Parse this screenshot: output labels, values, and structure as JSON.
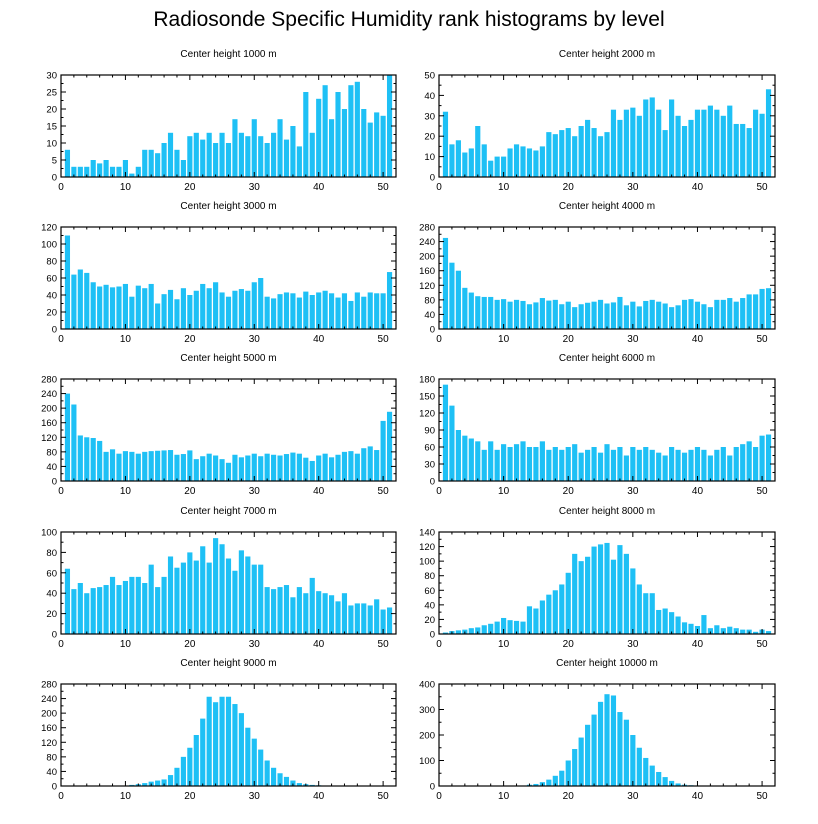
{
  "title": "Radiosonde Specific Humidity rank histograms by level",
  "bar_color": "#1ec0f5",
  "chart_data": [
    {
      "type": "bar",
      "title": "Center height 1000 m",
      "xlabel": "",
      "ylabel": "",
      "xlim": [
        0,
        52
      ],
      "ylim": [
        0,
        30
      ],
      "xticks": [
        0,
        10,
        20,
        30,
        40,
        50
      ],
      "yticks": [
        0,
        5,
        10,
        15,
        20,
        25,
        30
      ],
      "x": [
        1,
        2,
        3,
        4,
        5,
        6,
        7,
        8,
        9,
        10,
        11,
        12,
        13,
        14,
        15,
        16,
        17,
        18,
        19,
        20,
        21,
        22,
        23,
        24,
        25,
        26,
        27,
        28,
        29,
        30,
        31,
        32,
        33,
        34,
        35,
        36,
        37,
        38,
        39,
        40,
        41,
        42,
        43,
        44,
        45,
        46,
        47,
        48,
        49,
        50,
        51
      ],
      "values": [
        8,
        3,
        3,
        3,
        5,
        4,
        5,
        3,
        3,
        5,
        1,
        3,
        8,
        8,
        7,
        10,
        13,
        8,
        5,
        12,
        13,
        11,
        13,
        10,
        13,
        10,
        17,
        13,
        12,
        17,
        12,
        10,
        13,
        17,
        11,
        15,
        9,
        25,
        13,
        23,
        27,
        17,
        25,
        20,
        27,
        28,
        20,
        16,
        19,
        18,
        30
      ]
    },
    {
      "type": "bar",
      "title": "Center height 2000 m",
      "xlabel": "",
      "ylabel": "",
      "xlim": [
        0,
        52
      ],
      "ylim": [
        0,
        50
      ],
      "xticks": [
        0,
        10,
        20,
        30,
        40,
        50
      ],
      "yticks": [
        0,
        10,
        20,
        30,
        40,
        50
      ],
      "x": [
        1,
        2,
        3,
        4,
        5,
        6,
        7,
        8,
        9,
        10,
        11,
        12,
        13,
        14,
        15,
        16,
        17,
        18,
        19,
        20,
        21,
        22,
        23,
        24,
        25,
        26,
        27,
        28,
        29,
        30,
        31,
        32,
        33,
        34,
        35,
        36,
        37,
        38,
        39,
        40,
        41,
        42,
        43,
        44,
        45,
        46,
        47,
        48,
        49,
        50,
        51
      ],
      "values": [
        32,
        16,
        18,
        12,
        14,
        25,
        16,
        8,
        10,
        10,
        14,
        16,
        15,
        14,
        13,
        15,
        22,
        21,
        23,
        24,
        20,
        25,
        28,
        24,
        20,
        22,
        33,
        28,
        33,
        34,
        30,
        38,
        39,
        33,
        23,
        38,
        30,
        25,
        28,
        33,
        33,
        35,
        33,
        30,
        35,
        26,
        26,
        24,
        33,
        31,
        43
      ]
    },
    {
      "type": "bar",
      "title": "Center height 3000 m",
      "xlabel": "",
      "ylabel": "",
      "xlim": [
        0,
        52
      ],
      "ylim": [
        0,
        120
      ],
      "xticks": [
        0,
        10,
        20,
        30,
        40,
        50
      ],
      "yticks": [
        0,
        20,
        40,
        60,
        80,
        100,
        120
      ],
      "x": [
        1,
        2,
        3,
        4,
        5,
        6,
        7,
        8,
        9,
        10,
        11,
        12,
        13,
        14,
        15,
        16,
        17,
        18,
        19,
        20,
        21,
        22,
        23,
        24,
        25,
        26,
        27,
        28,
        29,
        30,
        31,
        32,
        33,
        34,
        35,
        36,
        37,
        38,
        39,
        40,
        41,
        42,
        43,
        44,
        45,
        46,
        47,
        48,
        49,
        50,
        51
      ],
      "values": [
        110,
        64,
        70,
        66,
        55,
        50,
        52,
        49,
        50,
        53,
        38,
        51,
        48,
        53,
        30,
        41,
        46,
        35,
        48,
        40,
        45,
        53,
        48,
        55,
        43,
        38,
        45,
        47,
        45,
        55,
        60,
        38,
        36,
        41,
        43,
        42,
        37,
        44,
        40,
        43,
        45,
        42,
        37,
        42,
        33,
        43,
        38,
        43,
        42,
        42,
        67
      ]
    },
    {
      "type": "bar",
      "title": "Center height 4000 m",
      "xlabel": "",
      "ylabel": "",
      "xlim": [
        0,
        52
      ],
      "ylim": [
        0,
        280
      ],
      "xticks": [
        0,
        10,
        20,
        30,
        40,
        50
      ],
      "yticks": [
        0,
        40,
        80,
        120,
        160,
        200,
        240,
        280
      ],
      "x": [
        1,
        2,
        3,
        4,
        5,
        6,
        7,
        8,
        9,
        10,
        11,
        12,
        13,
        14,
        15,
        16,
        17,
        18,
        19,
        20,
        21,
        22,
        23,
        24,
        25,
        26,
        27,
        28,
        29,
        30,
        31,
        32,
        33,
        34,
        35,
        36,
        37,
        38,
        39,
        40,
        41,
        42,
        43,
        44,
        45,
        46,
        47,
        48,
        49,
        50,
        51
      ],
      "values": [
        250,
        182,
        160,
        113,
        100,
        90,
        88,
        88,
        80,
        82,
        75,
        80,
        77,
        68,
        73,
        85,
        78,
        80,
        68,
        75,
        60,
        68,
        72,
        75,
        80,
        70,
        73,
        88,
        65,
        75,
        62,
        77,
        80,
        75,
        70,
        60,
        65,
        80,
        82,
        75,
        68,
        60,
        80,
        80,
        85,
        75,
        85,
        95,
        95,
        110,
        112
      ]
    },
    {
      "type": "bar",
      "title": "Center height 5000 m",
      "xlabel": "",
      "ylabel": "",
      "xlim": [
        0,
        52
      ],
      "ylim": [
        0,
        280
      ],
      "xticks": [
        0,
        10,
        20,
        30,
        40,
        50
      ],
      "yticks": [
        0,
        40,
        80,
        120,
        160,
        200,
        240,
        280
      ],
      "x": [
        1,
        2,
        3,
        4,
        5,
        6,
        7,
        8,
        9,
        10,
        11,
        12,
        13,
        14,
        15,
        16,
        17,
        18,
        19,
        20,
        21,
        22,
        23,
        24,
        25,
        26,
        27,
        28,
        29,
        30,
        31,
        32,
        33,
        34,
        35,
        36,
        37,
        38,
        39,
        40,
        41,
        42,
        43,
        44,
        45,
        46,
        47,
        48,
        49,
        50,
        51
      ],
      "values": [
        240,
        210,
        125,
        120,
        118,
        110,
        80,
        87,
        75,
        82,
        80,
        75,
        80,
        82,
        83,
        84,
        85,
        72,
        74,
        84,
        60,
        68,
        75,
        70,
        60,
        50,
        72,
        65,
        70,
        75,
        68,
        75,
        72,
        70,
        74,
        78,
        75,
        64,
        55,
        70,
        75,
        65,
        72,
        80,
        82,
        75,
        90,
        95,
        85,
        165,
        190
      ]
    },
    {
      "type": "bar",
      "title": "Center height 6000 m",
      "xlabel": "",
      "ylabel": "",
      "xlim": [
        0,
        52
      ],
      "ylim": [
        0,
        180
      ],
      "xticks": [
        0,
        10,
        20,
        30,
        40,
        50
      ],
      "yticks": [
        0,
        30,
        60,
        90,
        120,
        150,
        180
      ],
      "x": [
        1,
        2,
        3,
        4,
        5,
        6,
        7,
        8,
        9,
        10,
        11,
        12,
        13,
        14,
        15,
        16,
        17,
        18,
        19,
        20,
        21,
        22,
        23,
        24,
        25,
        26,
        27,
        28,
        29,
        30,
        31,
        32,
        33,
        34,
        35,
        36,
        37,
        38,
        39,
        40,
        41,
        42,
        43,
        44,
        45,
        46,
        47,
        48,
        49,
        50,
        51
      ],
      "values": [
        170,
        133,
        90,
        80,
        75,
        70,
        55,
        70,
        55,
        65,
        60,
        65,
        70,
        60,
        60,
        70,
        55,
        60,
        55,
        60,
        65,
        50,
        55,
        60,
        50,
        65,
        55,
        60,
        45,
        60,
        55,
        60,
        55,
        50,
        45,
        60,
        55,
        50,
        55,
        60,
        55,
        45,
        55,
        60,
        45,
        60,
        65,
        70,
        60,
        80,
        82
      ]
    },
    {
      "type": "bar",
      "title": "Center height 7000 m",
      "xlabel": "",
      "ylabel": "",
      "xlim": [
        0,
        52
      ],
      "ylim": [
        0,
        100
      ],
      "xticks": [
        0,
        10,
        20,
        30,
        40,
        50
      ],
      "yticks": [
        0,
        20,
        40,
        60,
        80,
        100
      ],
      "x": [
        1,
        2,
        3,
        4,
        5,
        6,
        7,
        8,
        9,
        10,
        11,
        12,
        13,
        14,
        15,
        16,
        17,
        18,
        19,
        20,
        21,
        22,
        23,
        24,
        25,
        26,
        27,
        28,
        29,
        30,
        31,
        32,
        33,
        34,
        35,
        36,
        37,
        38,
        39,
        40,
        41,
        42,
        43,
        44,
        45,
        46,
        47,
        48,
        49,
        50,
        51
      ],
      "values": [
        64,
        44,
        50,
        40,
        45,
        46,
        48,
        56,
        48,
        52,
        56,
        56,
        50,
        68,
        46,
        56,
        76,
        65,
        70,
        80,
        72,
        86,
        70,
        94,
        88,
        74,
        62,
        82,
        76,
        68,
        68,
        46,
        44,
        46,
        48,
        36,
        46,
        40,
        55,
        42,
        40,
        38,
        32,
        40,
        28,
        30,
        30,
        28,
        34,
        24,
        26
      ]
    },
    {
      "type": "bar",
      "title": "Center height 8000 m",
      "xlabel": "",
      "ylabel": "",
      "xlim": [
        0,
        52
      ],
      "ylim": [
        0,
        140
      ],
      "xticks": [
        0,
        10,
        20,
        30,
        40,
        50
      ],
      "yticks": [
        0,
        20,
        40,
        60,
        80,
        100,
        120,
        140
      ],
      "x": [
        1,
        2,
        3,
        4,
        5,
        6,
        7,
        8,
        9,
        10,
        11,
        12,
        13,
        14,
        15,
        16,
        17,
        18,
        19,
        20,
        21,
        22,
        23,
        24,
        25,
        26,
        27,
        28,
        29,
        30,
        31,
        32,
        33,
        34,
        35,
        36,
        37,
        38,
        39,
        40,
        41,
        42,
        43,
        44,
        45,
        46,
        47,
        48,
        49,
        50,
        51
      ],
      "values": [
        2,
        4,
        5,
        6,
        8,
        9,
        12,
        14,
        17,
        22,
        19,
        18,
        17,
        38,
        35,
        46,
        54,
        60,
        68,
        84,
        110,
        100,
        106,
        120,
        123,
        125,
        102,
        122,
        110,
        90,
        68,
        56,
        56,
        33,
        35,
        30,
        24,
        16,
        14,
        11,
        26,
        8,
        12,
        8,
        10,
        8,
        6,
        6,
        3,
        6,
        4
      ]
    },
    {
      "type": "bar",
      "title": "Center height 9000 m",
      "xlabel": "",
      "ylabel": "",
      "xlim": [
        0,
        52
      ],
      "ylim": [
        0,
        280
      ],
      "xticks": [
        0,
        10,
        20,
        30,
        40,
        50
      ],
      "yticks": [
        0,
        40,
        80,
        120,
        160,
        200,
        240,
        280
      ],
      "x": [
        1,
        2,
        3,
        4,
        5,
        6,
        7,
        8,
        9,
        10,
        11,
        12,
        13,
        14,
        15,
        16,
        17,
        18,
        19,
        20,
        21,
        22,
        23,
        24,
        25,
        26,
        27,
        28,
        29,
        30,
        31,
        32,
        33,
        34,
        35,
        36,
        37,
        38,
        39,
        40,
        41,
        42,
        43,
        44,
        45,
        46,
        47,
        48,
        49,
        50,
        51
      ],
      "values": [
        0,
        0,
        0,
        0,
        0,
        0,
        0,
        0,
        1,
        1,
        3,
        5,
        8,
        12,
        15,
        18,
        30,
        50,
        80,
        105,
        140,
        185,
        245,
        230,
        245,
        245,
        225,
        200,
        160,
        130,
        100,
        70,
        50,
        35,
        25,
        15,
        8,
        5,
        3,
        2,
        1,
        1,
        0,
        0,
        0,
        0,
        0,
        0,
        0,
        0,
        0
      ]
    },
    {
      "type": "bar",
      "title": "Center height 10000 m",
      "xlabel": "",
      "ylabel": "",
      "xlim": [
        0,
        52
      ],
      "ylim": [
        0,
        400
      ],
      "xticks": [
        0,
        10,
        20,
        30,
        40,
        50
      ],
      "yticks": [
        0,
        100,
        200,
        300,
        400
      ],
      "x": [
        1,
        2,
        3,
        4,
        5,
        6,
        7,
        8,
        9,
        10,
        11,
        12,
        13,
        14,
        15,
        16,
        17,
        18,
        19,
        20,
        21,
        22,
        23,
        24,
        25,
        26,
        27,
        28,
        29,
        30,
        31,
        32,
        33,
        34,
        35,
        36,
        37,
        38,
        39,
        40,
        41,
        42,
        43,
        44,
        45,
        46,
        47,
        48,
        49,
        50,
        51
      ],
      "values": [
        0,
        0,
        0,
        0,
        0,
        0,
        0,
        0,
        0,
        0,
        0,
        0,
        2,
        5,
        8,
        15,
        25,
        40,
        60,
        100,
        145,
        190,
        240,
        280,
        330,
        360,
        355,
        290,
        260,
        200,
        150,
        110,
        80,
        55,
        35,
        20,
        10,
        5,
        3,
        2,
        1,
        1,
        0,
        0,
        0,
        0,
        0,
        0,
        0,
        0,
        0
      ]
    }
  ]
}
